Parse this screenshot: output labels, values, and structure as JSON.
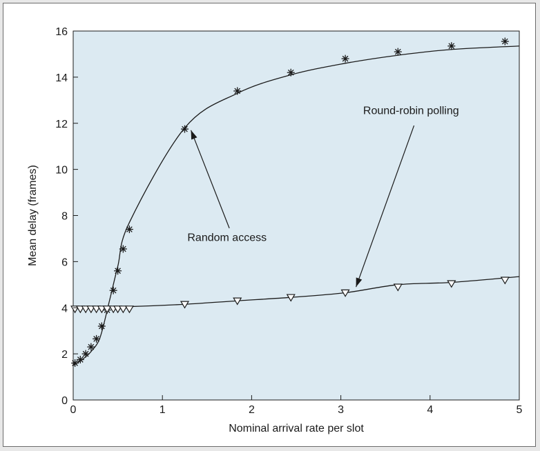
{
  "chart_data": {
    "type": "line",
    "xlabel": "Nominal arrival rate per slot",
    "ylabel": "Mean delay (frames)",
    "xlim": [
      0,
      5
    ],
    "ylim": [
      0,
      16
    ],
    "xticks": [
      0,
      1,
      2,
      3,
      4,
      5
    ],
    "yticks": [
      0,
      2,
      4,
      6,
      8,
      10,
      12,
      14,
      16
    ],
    "grid": false,
    "plot_background": "#dceaf2",
    "series": [
      {
        "marker": "asterisk",
        "color": "#1a1a1a",
        "x": [
          0.02,
          0.08,
          0.14,
          0.2,
          0.26,
          0.32,
          0.38,
          0.45,
          0.5,
          0.56,
          0.63,
          1.25,
          1.84,
          2.44,
          3.05,
          3.64,
          4.24,
          4.84
        ],
        "y": [
          1.6,
          1.75,
          2.0,
          2.3,
          2.65,
          3.2,
          3.9,
          4.75,
          5.6,
          6.55,
          7.4,
          11.75,
          13.4,
          14.2,
          14.8,
          15.1,
          15.35,
          15.55
        ],
        "curve_x": [
          0,
          0.1,
          0.2,
          0.3,
          0.4,
          0.5,
          0.63,
          1.25,
          1.84,
          2.44,
          3.05,
          3.64,
          4.24,
          5.0
        ],
        "curve_y": [
          1.5,
          1.75,
          2.1,
          2.7,
          4.2,
          5.8,
          7.7,
          11.8,
          13.3,
          14.1,
          14.6,
          14.95,
          15.2,
          15.35
        ]
      },
      {
        "marker": "triangle-down",
        "color": "#1a1a1a",
        "x": [
          0.02,
          0.08,
          0.14,
          0.2,
          0.26,
          0.32,
          0.38,
          0.45,
          0.5,
          0.56,
          0.63,
          1.25,
          1.84,
          2.44,
          3.05,
          3.64,
          4.24,
          4.84
        ],
        "y": [
          3.95,
          3.95,
          3.95,
          3.95,
          3.95,
          3.95,
          3.95,
          3.95,
          3.95,
          3.95,
          3.95,
          4.15,
          4.3,
          4.45,
          4.65,
          4.9,
          5.05,
          5.2
        ],
        "curve_x": [
          0,
          0.63,
          1.25,
          1.84,
          2.44,
          3.05,
          3.64,
          4.24,
          5.0
        ],
        "curve_y": [
          4.0,
          4.05,
          4.15,
          4.3,
          4.45,
          4.65,
          5.0,
          5.1,
          5.35
        ]
      }
    ],
    "annotations": [
      {
        "text": "Random access",
        "text_x": 1.28,
        "text_y": 6.9,
        "line_from": [
          1.75,
          7.45
        ],
        "arrow_to": [
          1.32,
          11.7
        ]
      },
      {
        "text": "Round-robin polling",
        "text_x": 3.25,
        "text_y": 12.4,
        "line_from": [
          3.82,
          11.9
        ],
        "arrow_to": [
          3.17,
          4.9
        ]
      }
    ]
  }
}
